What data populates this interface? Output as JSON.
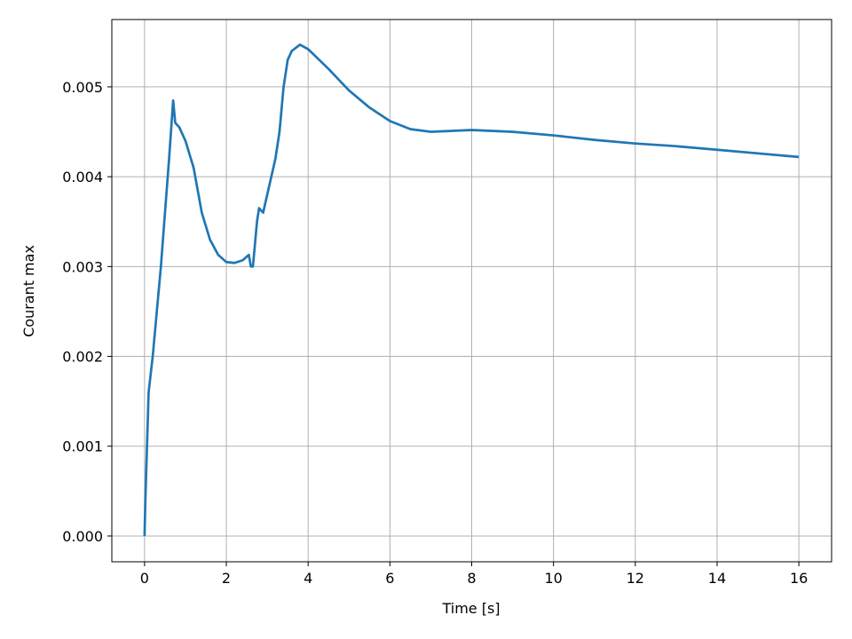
{
  "chart_data": {
    "type": "line",
    "x_label": "Time [s]",
    "y_label": "Courant max",
    "x": [
      0,
      0.02,
      0.1,
      0.2,
      0.4,
      0.6,
      0.7,
      0.75,
      0.85,
      1.0,
      1.2,
      1.4,
      1.6,
      1.8,
      2.0,
      2.2,
      2.4,
      2.55,
      2.6,
      2.65,
      2.75,
      2.8,
      2.9,
      3.0,
      3.2,
      3.3,
      3.4,
      3.5,
      3.6,
      3.8,
      4.0,
      4.5,
      5,
      5.5,
      6,
      6.5,
      7,
      8,
      9,
      10,
      11,
      12,
      13,
      14,
      15,
      16
    ],
    "series": [
      {
        "color": "#1f77b4",
        "values": [
          0,
          0.0004,
          0.0016,
          0.002,
          0.003,
          0.0042,
          0.00485,
          0.0046,
          0.00455,
          0.0044,
          0.0041,
          0.0036,
          0.0033,
          0.00313,
          0.00305,
          0.00304,
          0.00307,
          0.00313,
          0.003,
          0.003,
          0.0035,
          0.00365,
          0.0036,
          0.0038,
          0.0042,
          0.0045,
          0.005,
          0.0053,
          0.0054,
          0.00547,
          0.00542,
          0.0052,
          0.00496,
          0.00477,
          0.00462,
          0.00453,
          0.0045,
          0.00452,
          0.0045,
          0.00446,
          0.00441,
          0.00437,
          0.00434,
          0.0043,
          0.00426,
          0.00422
        ]
      }
    ],
    "xlim": [
      -0.8,
      16.8
    ],
    "ylim": [
      -0.000287,
      0.00575
    ],
    "xticks": [
      0,
      2,
      4,
      6,
      8,
      10,
      12,
      14,
      16
    ],
    "yticks": [
      {
        "value": 0,
        "label": "0.000"
      },
      {
        "value": 0.001,
        "label": "0.001"
      },
      {
        "value": 0.002,
        "label": "0.002"
      },
      {
        "value": 0.003,
        "label": "0.003"
      },
      {
        "value": 0.004,
        "label": "0.004"
      },
      {
        "value": 0.005,
        "label": "0.005"
      }
    ],
    "grid": true
  }
}
